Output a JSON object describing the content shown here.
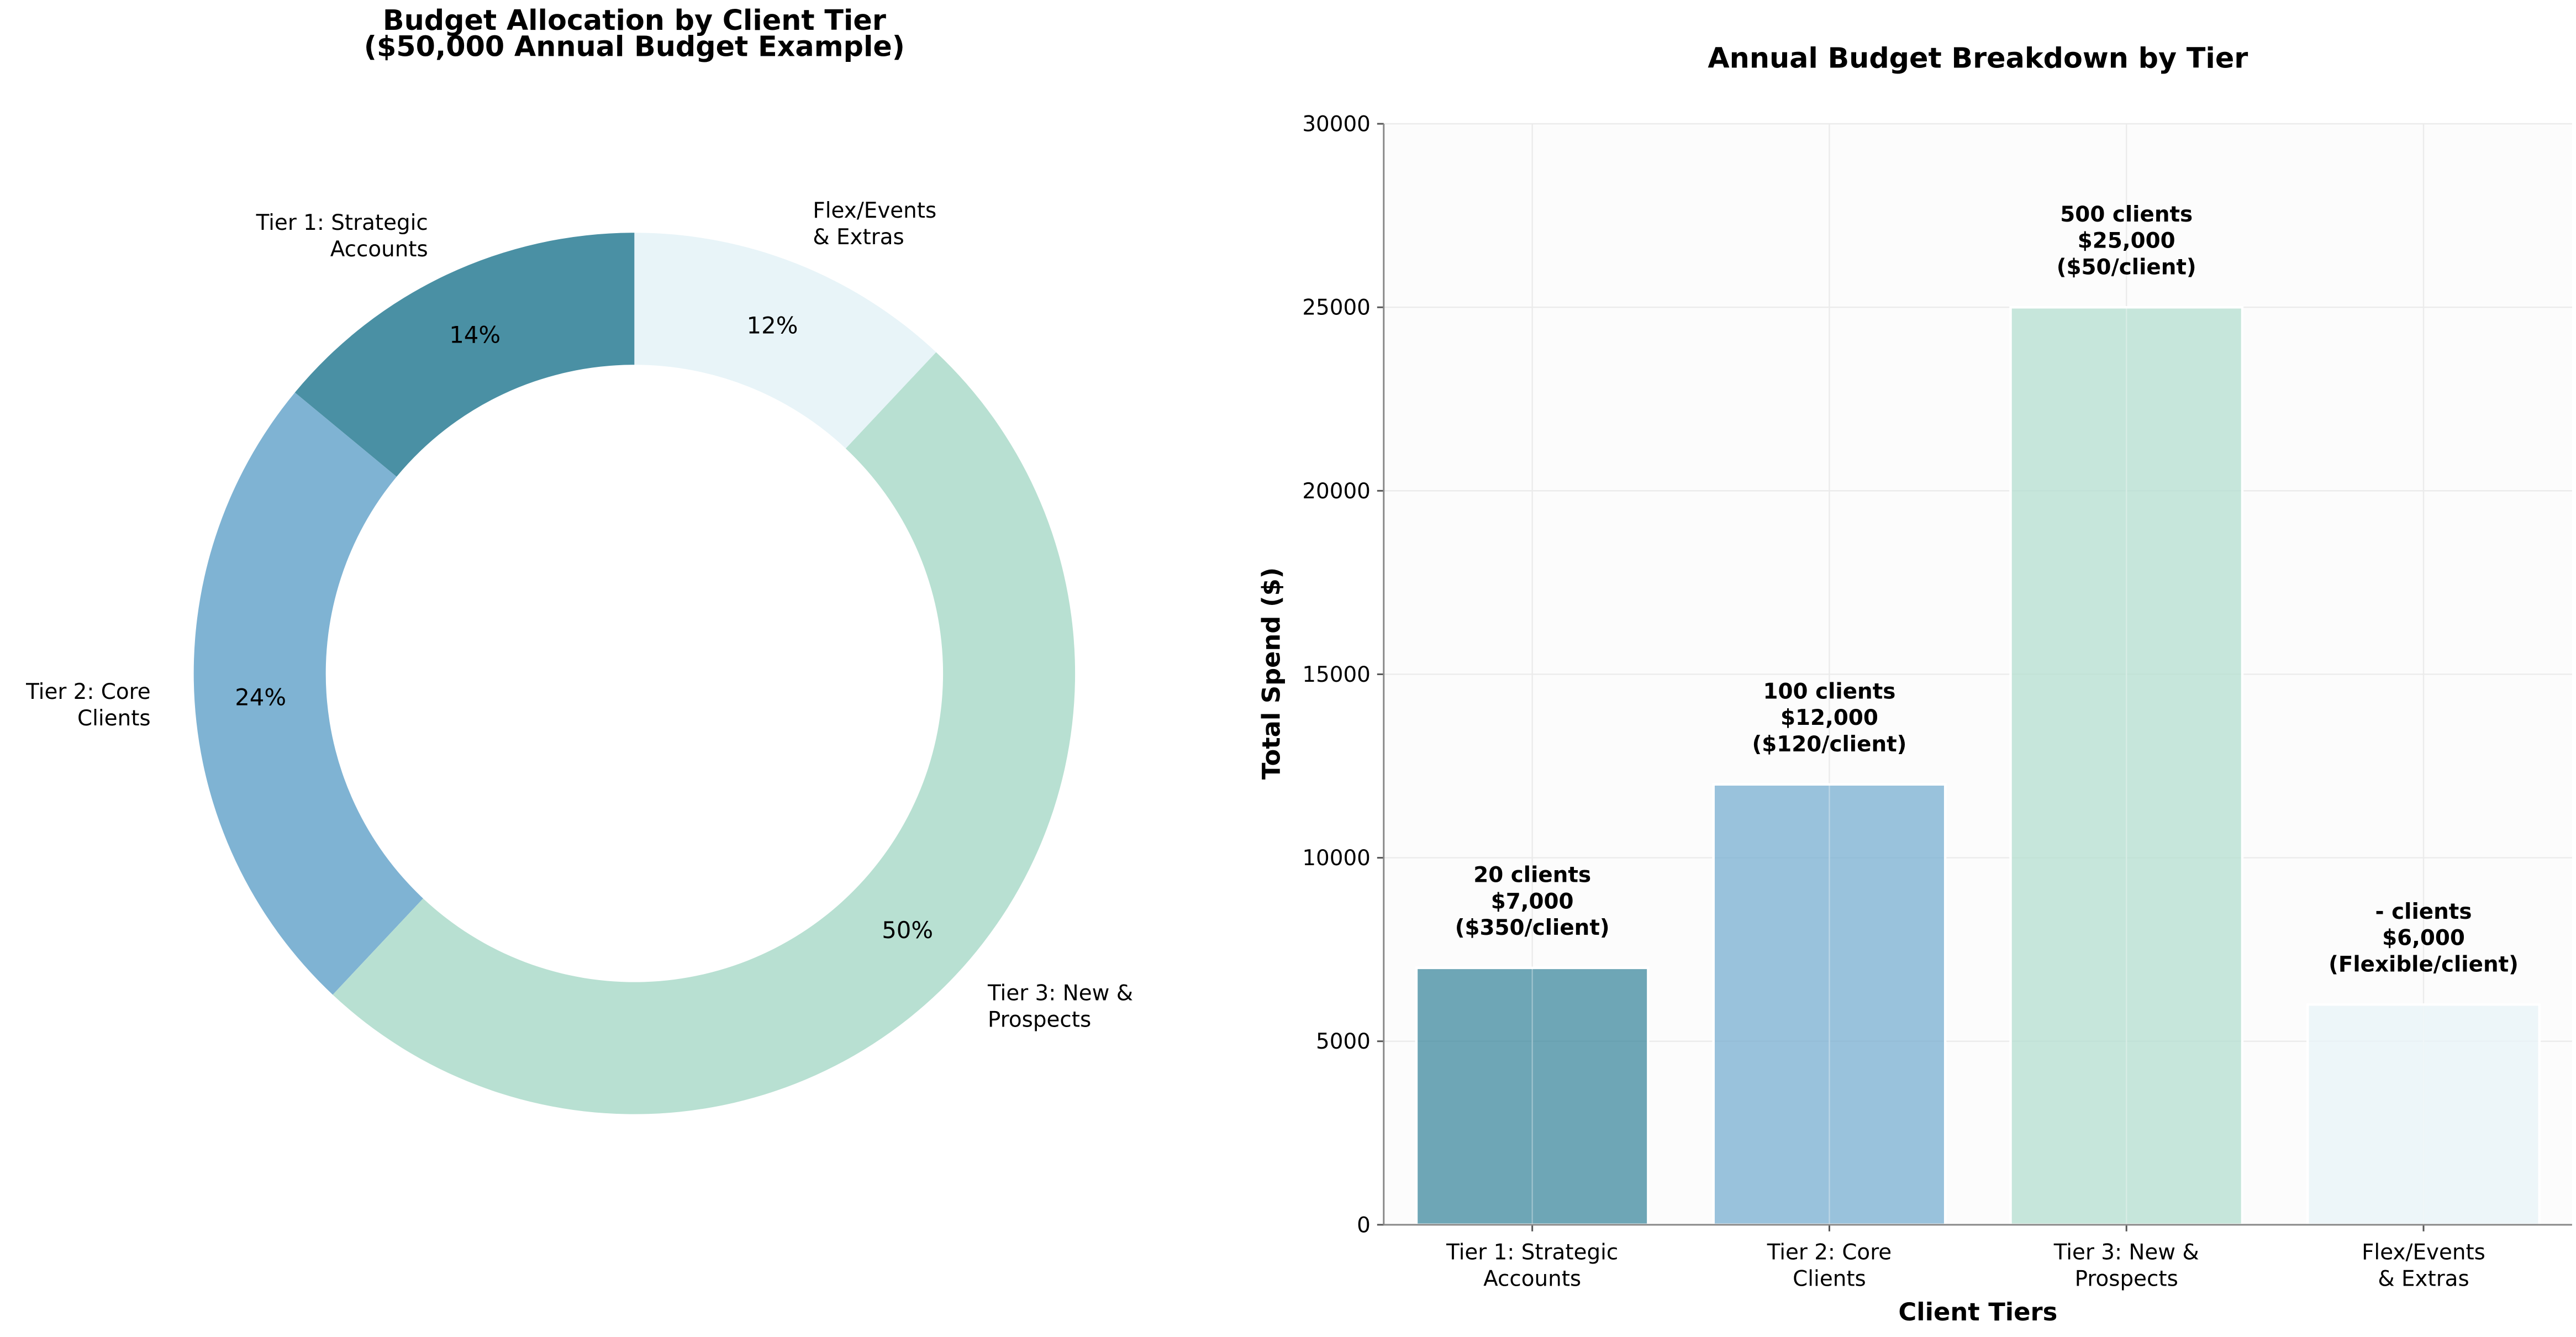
{
  "chart_data": [
    {
      "type": "pie",
      "title": "Budget Allocation by Client Tier\n($50,000 Annual Budget Example)",
      "categories": [
        "Tier 1: Strategic\nAccounts",
        "Tier 2: Core\nClients",
        "Tier 3: New &\nProspects",
        "Flex/Events\n& Extras"
      ],
      "values": [
        14,
        24,
        50,
        12
      ],
      "value_labels": [
        "14%",
        "24%",
        "50%",
        "12%"
      ],
      "colors": [
        "#4a90a4",
        "#7fb3d3",
        "#b8e0d2",
        "#e8f4f8"
      ]
    },
    {
      "type": "bar",
      "title": "Annual Budget Breakdown by Tier",
      "x_label": "Client Tiers",
      "y_label": "Total Spend ($)",
      "categories": [
        "Tier 1: Strategic\nAccounts",
        "Tier 2: Core\nClients",
        "Tier 3: New &\nProspects",
        "Flex/Events\n& Extras"
      ],
      "values": [
        7000,
        12000,
        25000,
        6000
      ],
      "value_labels": [
        "20 clients\n$7,000\n($350/client)",
        "100 clients\n$12,000\n($120/client)",
        "500 clients\n$25,000\n($50/client)",
        "- clients\n$6,000\n(Flexible/client)"
      ],
      "colors": [
        "#4a90a4",
        "#7fb3d3",
        "#b8e0d2",
        "#e8f4f8"
      ],
      "ylim": [
        0,
        30000
      ],
      "yticks": [
        0,
        5000,
        10000,
        15000,
        20000,
        25000,
        30000
      ],
      "grid": true
    }
  ]
}
